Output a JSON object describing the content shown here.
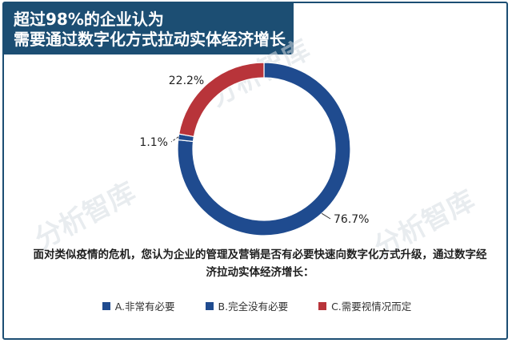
{
  "header": {
    "line1": "超过98%的企业认为",
    "line2": "需要通过数字化方式拉动实体经济增长"
  },
  "watermark": "分析智库",
  "question": {
    "line1": "面对类似疫情的危机，您认为企业的管理及营销是否有必要快速向数字化方式升级，通过数字经",
    "line2": "济拉动实体经济增长："
  },
  "colors": {
    "header_bg": "#1c4e73",
    "blue": "#1f4b8f",
    "red": "#b8343a"
  },
  "chart_data": {
    "type": "pie",
    "style": "donut",
    "slices": [
      {
        "label": "A.非常有必要",
        "value": 76.7,
        "display": "76.7%",
        "color": "#1f4b8f"
      },
      {
        "label": "B.完全没有必要",
        "value": 1.1,
        "display": "1.1%",
        "color": "#1f4b8f"
      },
      {
        "label": "C.需要视情况而定",
        "value": 22.2,
        "display": "22.2%",
        "color": "#b8343a"
      }
    ],
    "legend_position": "bottom"
  }
}
